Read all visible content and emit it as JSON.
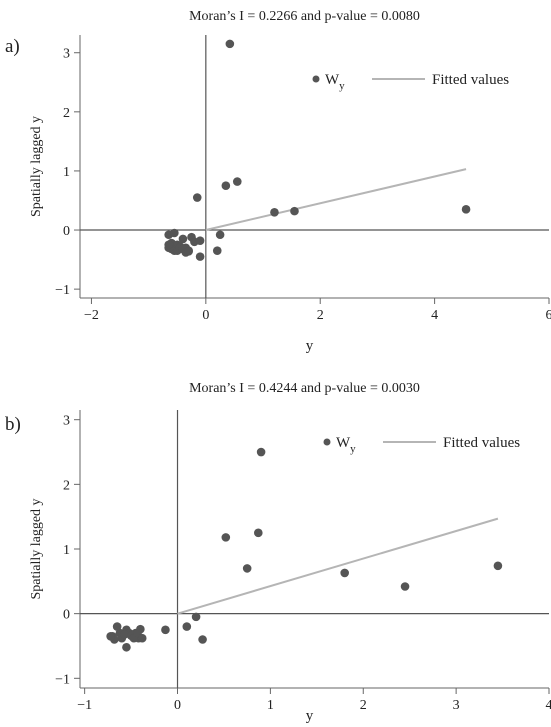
{
  "chart_data": [
    {
      "type": "scatter",
      "panel_label": "a)",
      "title": "Moran’s I = 0.2266 and p-value = 0.0080",
      "xlabel": "y",
      "ylabel": "Spatially lagged y",
      "xlim": [
        -2.2,
        6.0
      ],
      "ylim": [
        -1.15,
        3.3
      ],
      "xticks": [
        -2,
        0,
        2,
        4,
        6
      ],
      "yticks": [
        -1,
        0,
        1,
        2,
        3
      ],
      "xtick_labels": [
        "−2",
        "0",
        "2",
        "4",
        "6"
      ],
      "ytick_labels": [
        "−1",
        "0",
        "1",
        "2",
        "3"
      ],
      "legend": {
        "placement": "top-right",
        "points_label": "W",
        "points_label_sub": "y",
        "line_label": "Fitted values"
      },
      "series": [
        {
          "name": "Wy",
          "kind": "scatter",
          "x": [
            0.42,
            0.55,
            0.35,
            -0.15,
            1.2,
            1.55,
            4.55,
            -0.65,
            -0.55,
            -0.6,
            -0.5,
            -0.45,
            -0.4,
            -0.35,
            -0.3,
            -0.25,
            -0.2,
            -0.65,
            -0.6,
            -0.55,
            -0.5,
            -0.45,
            -0.4,
            -0.35,
            -0.3,
            -0.1,
            0.25,
            0.2,
            -0.1,
            -0.65
          ],
          "y": [
            3.15,
            0.82,
            0.75,
            0.55,
            0.3,
            0.32,
            0.35,
            -0.08,
            -0.05,
            -0.22,
            -0.25,
            -0.28,
            -0.15,
            -0.3,
            -0.35,
            -0.12,
            -0.2,
            -0.3,
            -0.32,
            -0.35,
            -0.35,
            -0.3,
            -0.32,
            -0.38,
            -0.36,
            -0.18,
            -0.08,
            -0.35,
            -0.45,
            -0.25
          ]
        },
        {
          "name": "Fitted values",
          "kind": "line",
          "x": [
            0,
            4.55
          ],
          "y": [
            0,
            1.03
          ]
        }
      ]
    },
    {
      "type": "scatter",
      "panel_label": "b)",
      "title": "Moran’s I = 0.4244 and p-value = 0.0030",
      "xlabel": "y",
      "ylabel": "Spatially lagged y",
      "xlim": [
        -1.05,
        4.0
      ],
      "ylim": [
        -1.15,
        3.15
      ],
      "xticks": [
        -1,
        0,
        1,
        2,
        3,
        4
      ],
      "yticks": [
        -1,
        0,
        1,
        2,
        3
      ],
      "xtick_labels": [
        "−1",
        "0",
        "1",
        "2",
        "3",
        "4"
      ],
      "ytick_labels": [
        "−1",
        "0",
        "1",
        "2",
        "3"
      ],
      "legend": {
        "placement": "top-right",
        "points_label": "W",
        "points_label_sub": "y",
        "line_label": "Fitted values"
      },
      "series": [
        {
          "name": "Wy",
          "kind": "scatter",
          "x": [
            0.9,
            0.52,
            0.87,
            0.75,
            1.8,
            2.45,
            3.45,
            0.1,
            0.2,
            0.27,
            -0.13,
            -0.65,
            -0.7,
            -0.62,
            -0.58,
            -0.55,
            -0.52,
            -0.48,
            -0.45,
            -0.42,
            -0.4,
            -0.6,
            -0.57,
            -0.5,
            -0.47,
            -0.43,
            -0.68,
            -0.72,
            -0.55,
            -0.38
          ],
          "y": [
            2.5,
            1.18,
            1.25,
            0.7,
            0.63,
            0.42,
            0.74,
            -0.2,
            -0.05,
            -0.4,
            -0.25,
            -0.2,
            -0.35,
            -0.3,
            -0.33,
            -0.25,
            -0.3,
            -0.36,
            -0.3,
            -0.38,
            -0.24,
            -0.38,
            -0.32,
            -0.34,
            -0.38,
            -0.3,
            -0.4,
            -0.35,
            -0.52,
            -0.38
          ]
        },
        {
          "name": "Fitted values",
          "kind": "line",
          "x": [
            0,
            3.45
          ],
          "y": [
            0,
            1.47
          ]
        }
      ]
    }
  ]
}
